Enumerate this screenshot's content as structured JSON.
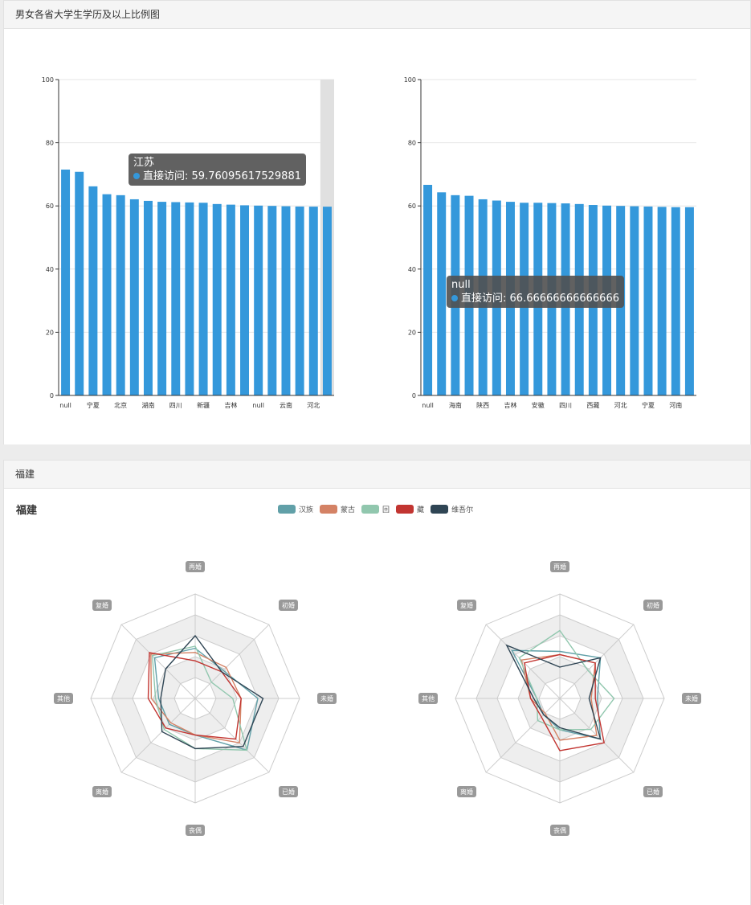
{
  "panels": [
    {
      "title": "男女各省大学生学历及以上比例图"
    },
    {
      "title": "福建"
    }
  ],
  "tooltips": [
    {
      "name": "江苏",
      "series": "直接访问",
      "value": "59.76095617529881"
    },
    {
      "name": "null",
      "series": "直接访问",
      "value": "66.66666666666666"
    }
  ],
  "colors": {
    "bar": "#3498db",
    "radar": [
      "#61a0a8",
      "#d48265",
      "#91c7ae",
      "#c23531",
      "#2f4554"
    ]
  },
  "chart_data": [
    {
      "type": "bar",
      "ylim": [
        0,
        100
      ],
      "yticks": [
        0,
        20,
        40,
        60,
        80,
        100
      ],
      "categories": [
        "null",
        "",
        "宁夏",
        "",
        "北京",
        "",
        "湖南",
        "",
        "四川",
        "",
        "新疆",
        "",
        "吉林",
        "",
        "null",
        "",
        "云南",
        "",
        "河北",
        ""
      ],
      "series": [
        {
          "name": "直接访问",
          "values": [
            71.5,
            70.8,
            66.2,
            63.7,
            63.4,
            62.1,
            61.6,
            61.3,
            61.2,
            61.1,
            61.0,
            60.6,
            60.4,
            60.2,
            60.1,
            60.0,
            59.9,
            59.8,
            59.77,
            59.76
          ]
        }
      ],
      "highlight_index": 19
    },
    {
      "type": "bar",
      "ylim": [
        0,
        100
      ],
      "yticks": [
        0,
        20,
        40,
        60,
        80,
        100
      ],
      "categories": [
        "null",
        "",
        "海南",
        "",
        "陕西",
        "",
        "吉林",
        "",
        "安徽",
        "",
        "四川",
        "",
        "西藏",
        "",
        "河北",
        "",
        "宁夏",
        "",
        "河南",
        ""
      ],
      "series": [
        {
          "name": "直接访问",
          "values": [
            66.67,
            64.3,
            63.4,
            63.2,
            62.1,
            61.7,
            61.3,
            61.0,
            61.0,
            60.9,
            60.8,
            60.6,
            60.3,
            60.1,
            60.0,
            59.9,
            59.8,
            59.7,
            59.6,
            59.6
          ]
        }
      ]
    },
    {
      "type": "radar",
      "title": "福建",
      "indicators": [
        "再婚",
        "初婚",
        "未婚",
        "已婚",
        "丧偶",
        "离婚",
        "其他",
        "复婚"
      ],
      "max": 100,
      "series": [
        {
          "name": "汉族",
          "values": [
            48,
            38,
            60,
            70,
            35,
            35,
            35,
            55
          ]
        },
        {
          "name": "蒙古",
          "values": [
            44,
            42,
            44,
            60,
            35,
            33,
            42,
            60
          ]
        },
        {
          "name": "回",
          "values": [
            50,
            22,
            36,
            70,
            48,
            42,
            38,
            58
          ]
        },
        {
          "name": "藏",
          "values": [
            36,
            36,
            44,
            55,
            35,
            40,
            45,
            62
          ]
        },
        {
          "name": "维吾尔",
          "values": [
            60,
            36,
            65,
            65,
            48,
            45,
            33,
            40
          ]
        }
      ]
    },
    {
      "type": "radar",
      "indicators": [
        "再婚",
        "初婚",
        "未婚",
        "已婚",
        "丧偶",
        "离婚",
        "其他",
        "复婚"
      ],
      "max": 100,
      "series": [
        {
          "name": "汉族",
          "values": [
            45,
            55,
            36,
            55,
            30,
            22,
            22,
            65
          ]
        },
        {
          "name": "蒙古",
          "values": [
            42,
            48,
            30,
            50,
            40,
            20,
            28,
            52
          ]
        },
        {
          "name": "回",
          "values": [
            65,
            38,
            52,
            42,
            30,
            30,
            22,
            55
          ]
        },
        {
          "name": "藏",
          "values": [
            42,
            48,
            34,
            60,
            50,
            25,
            28,
            48
          ]
        },
        {
          "name": "维吾尔",
          "values": [
            30,
            55,
            28,
            55,
            28,
            22,
            25,
            72
          ]
        }
      ]
    }
  ]
}
